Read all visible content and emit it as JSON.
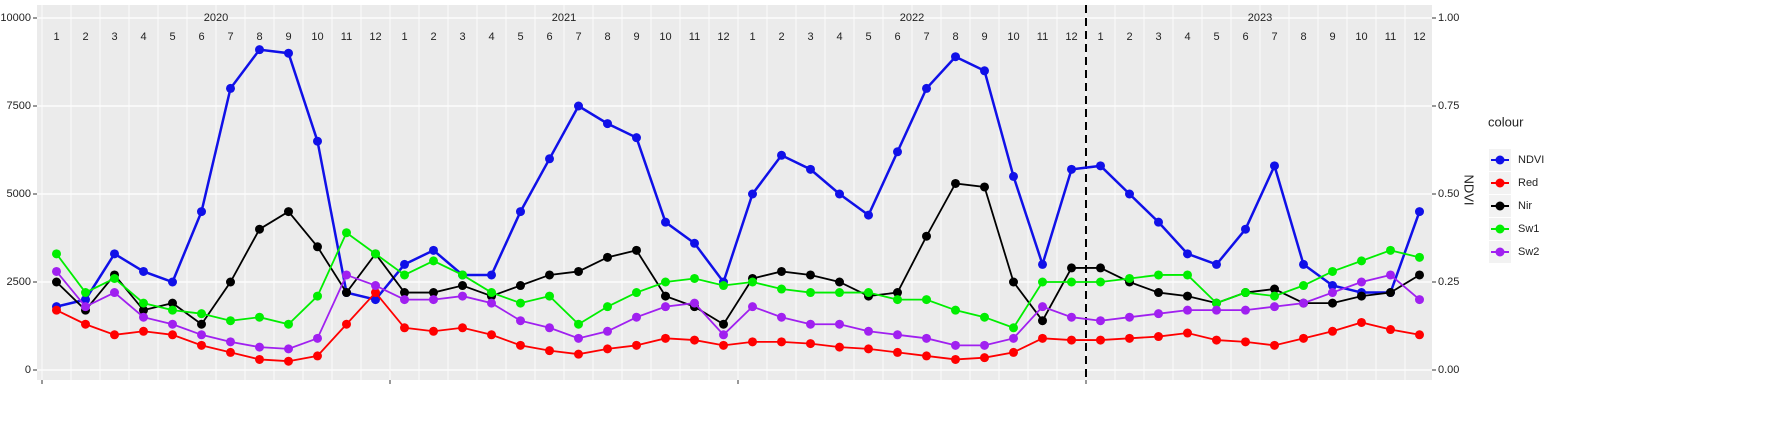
{
  "chart_data": {
    "type": "line",
    "x_years": [
      2020,
      2021,
      2022,
      2023
    ],
    "x_months": [
      1,
      2,
      3,
      4,
      5,
      6,
      7,
      8,
      9,
      10,
      11,
      12
    ],
    "x": [
      "2020-01",
      "2020-02",
      "2020-03",
      "2020-04",
      "2020-05",
      "2020-06",
      "2020-07",
      "2020-08",
      "2020-09",
      "2020-10",
      "2020-11",
      "2020-12",
      "2021-01",
      "2021-02",
      "2021-03",
      "2021-04",
      "2021-05",
      "2021-06",
      "2021-07",
      "2021-08",
      "2021-09",
      "2021-10",
      "2021-11",
      "2021-12",
      "2022-01",
      "2022-02",
      "2022-03",
      "2022-04",
      "2022-05",
      "2022-06",
      "2022-07",
      "2022-08",
      "2022-09",
      "2022-10",
      "2022-11",
      "2022-12",
      "2023-01",
      "2023-02",
      "2023-03",
      "2023-04",
      "2023-05",
      "2023-06",
      "2023-07",
      "2023-08",
      "2023-09",
      "2023-10",
      "2023-11",
      "2023-12"
    ],
    "ylim": [
      0,
      10000
    ],
    "yticks": [
      0,
      2500,
      5000,
      7500,
      10000
    ],
    "y2lim": [
      0,
      1
    ],
    "y2ticks": [
      {
        "value": 0,
        "label": "0.00"
      },
      0.25,
      {
        "value": 0.5,
        "label": "0.50"
      },
      0.75,
      {
        "value": 1,
        "label": "1.00"
      }
    ],
    "y2_label": "NDVI",
    "legend_title": "colour",
    "vline_x": "2023-01",
    "grid": true,
    "series": [
      {
        "name": "NDVI",
        "color": "#1010e8",
        "axis": "y2",
        "values": [
          0.18,
          0.2,
          0.33,
          0.28,
          0.25,
          0.45,
          0.8,
          0.91,
          0.9,
          0.65,
          0.22,
          0.2,
          0.3,
          0.34,
          0.27,
          0.27,
          0.45,
          0.6,
          0.75,
          0.7,
          0.66,
          0.42,
          0.36,
          0.25,
          0.5,
          0.61,
          0.57,
          0.5,
          0.44,
          0.62,
          0.8,
          0.89,
          0.85,
          0.55,
          0.3,
          0.57,
          0.58,
          0.5,
          0.42,
          0.33,
          0.3,
          0.4,
          0.58,
          0.3,
          0.24,
          0.22,
          0.22,
          0.45
        ]
      },
      {
        "name": "Red",
        "color": "#ff0000",
        "values": [
          1700,
          1300,
          1000,
          1100,
          1000,
          700,
          500,
          300,
          250,
          400,
          1300,
          2200,
          1200,
          1100,
          1200,
          1000,
          700,
          550,
          450,
          600,
          700,
          900,
          850,
          700,
          800,
          800,
          750,
          650,
          600,
          500,
          400,
          300,
          350,
          500,
          900,
          850,
          850,
          900,
          950,
          1050,
          850,
          800,
          700,
          900,
          1100,
          1350,
          1150,
          1000
        ]
      },
      {
        "name": "Nir",
        "color": "#000000",
        "values": [
          2500,
          1700,
          2700,
          1700,
          1900,
          1300,
          2500,
          4000,
          4500,
          3500,
          2200,
          3300,
          2200,
          2200,
          2400,
          2100,
          2400,
          2700,
          2800,
          3200,
          3400,
          2100,
          1800,
          1300,
          2600,
          2800,
          2700,
          2500,
          2100,
          2200,
          3800,
          5300,
          5200,
          2500,
          1400,
          2900,
          2900,
          2500,
          2200,
          2100,
          1900,
          2200,
          2300,
          1900,
          1900,
          2100,
          2200,
          2700
        ]
      },
      {
        "name": "Sw1",
        "color": "#00ee00",
        "values": [
          3300,
          2200,
          2600,
          1900,
          1700,
          1600,
          1400,
          1500,
          1300,
          2100,
          3900,
          3300,
          2700,
          3100,
          2700,
          2200,
          1900,
          2100,
          1300,
          1800,
          2200,
          2500,
          2600,
          2400,
          2500,
          2300,
          2200,
          2200,
          2200,
          2000,
          2000,
          1700,
          1500,
          1200,
          2500,
          2500,
          2500,
          2600,
          2700,
          2700,
          1900,
          2200,
          2100,
          2400,
          2800,
          3100,
          3400,
          3200
        ]
      },
      {
        "name": "Sw2",
        "color": "#a020f0",
        "values": [
          2800,
          1800,
          2200,
          1500,
          1300,
          1000,
          800,
          650,
          600,
          900,
          2700,
          2400,
          2000,
          2000,
          2100,
          1900,
          1400,
          1200,
          900,
          1100,
          1500,
          1800,
          1900,
          1000,
          1800,
          1500,
          1300,
          1300,
          1100,
          1000,
          900,
          700,
          700,
          900,
          1800,
          1500,
          1400,
          1500,
          1600,
          1700,
          1700,
          1700,
          1800,
          1900,
          2200,
          2500,
          2700,
          2000
        ]
      }
    ]
  }
}
